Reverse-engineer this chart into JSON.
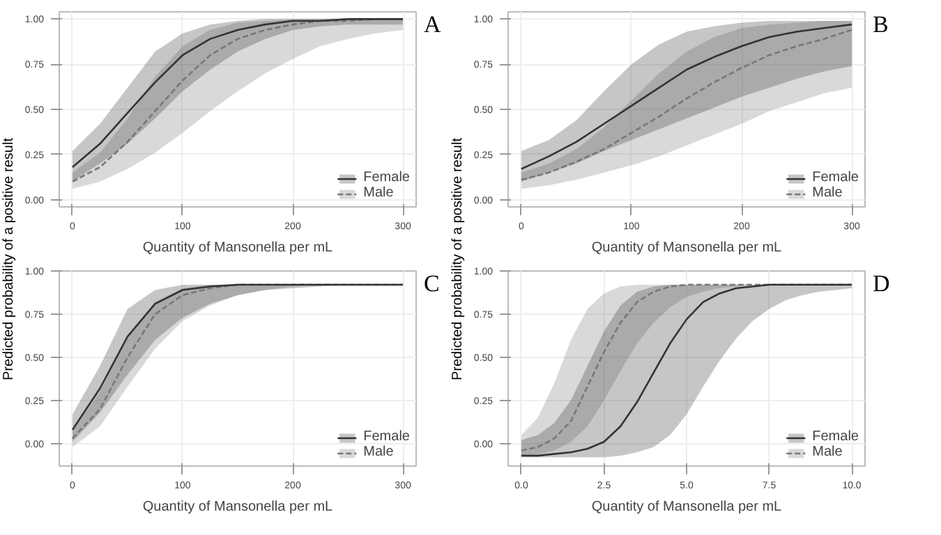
{
  "chart_data": [
    {
      "type": "line",
      "xlabel": "Quantity of Mansonella per mL",
      "ylabel": "Predicted probability of a positive result",
      "annotations": [
        "A"
      ],
      "x": [
        0,
        25,
        50,
        75,
        100,
        125,
        150,
        175,
        200,
        225,
        250,
        275,
        300
      ],
      "xlim": [
        -12,
        312
      ],
      "ylim": [
        -0.04,
        1.04
      ],
      "xticks": [
        0,
        100,
        200,
        300
      ],
      "yticks": [
        {
          "value": 0,
          "label": "0.00"
        },
        {
          "value": 0.25,
          "label": "0.25"
        },
        {
          "value": 0.5,
          "label": "0.50"
        },
        {
          "value": 0.75,
          "label": "0.75"
        },
        {
          "value": 1,
          "label": "1.00"
        }
      ],
      "grid": true,
      "legend": "bottom right",
      "series": [
        {
          "name": "Female",
          "color": "#333333",
          "line_style": "solid",
          "values": [
            0.18,
            0.31,
            0.48,
            0.65,
            0.8,
            0.89,
            0.94,
            0.97,
            0.99,
            0.99,
            1.0,
            1.0,
            1.0
          ],
          "lower": [
            0.1,
            0.2,
            0.31,
            0.45,
            0.6,
            0.72,
            0.82,
            0.89,
            0.94,
            0.96,
            0.97,
            0.97,
            0.97
          ],
          "upper": [
            0.27,
            0.42,
            0.62,
            0.82,
            0.92,
            0.97,
            0.99,
            1.0,
            1.0,
            1.0,
            1.0,
            1.0,
            1.0
          ]
        },
        {
          "name": "Male",
          "color": "#777777",
          "line_style": "dashed",
          "values": [
            0.1,
            0.18,
            0.32,
            0.49,
            0.66,
            0.8,
            0.89,
            0.94,
            0.97,
            0.99,
            0.99,
            1.0,
            1.0
          ],
          "lower": [
            0.06,
            0.1,
            0.17,
            0.26,
            0.37,
            0.49,
            0.6,
            0.7,
            0.78,
            0.85,
            0.89,
            0.92,
            0.94
          ],
          "upper": [
            0.15,
            0.26,
            0.45,
            0.68,
            0.85,
            0.94,
            0.98,
            0.99,
            1.0,
            1.0,
            1.0,
            1.0,
            1.0
          ]
        }
      ]
    },
    {
      "type": "line",
      "xlabel": "Quantity of Mansonella per mL",
      "ylabel": "Predicted probability of a positive result",
      "annotations": [
        "B"
      ],
      "x": [
        0,
        25,
        50,
        75,
        100,
        125,
        150,
        175,
        200,
        225,
        250,
        275,
        300
      ],
      "xlim": [
        -12,
        312
      ],
      "ylim": [
        -0.04,
        1.04
      ],
      "xticks": [
        0,
        100,
        200,
        300
      ],
      "yticks": [
        {
          "value": 0,
          "label": "0.00"
        },
        {
          "value": 0.25,
          "label": "0.25"
        },
        {
          "value": 0.5,
          "label": "0.50"
        },
        {
          "value": 0.75,
          "label": "0.75"
        },
        {
          "value": 1,
          "label": "1.00"
        }
      ],
      "grid": true,
      "legend": "bottom right",
      "series": [
        {
          "name": "Female",
          "color": "#333333",
          "line_style": "solid",
          "values": [
            0.17,
            0.24,
            0.32,
            0.42,
            0.52,
            0.62,
            0.72,
            0.79,
            0.85,
            0.9,
            0.93,
            0.95,
            0.97
          ],
          "lower": [
            0.1,
            0.15,
            0.2,
            0.27,
            0.33,
            0.39,
            0.45,
            0.51,
            0.57,
            0.62,
            0.67,
            0.71,
            0.74
          ],
          "upper": [
            0.27,
            0.33,
            0.44,
            0.6,
            0.75,
            0.86,
            0.93,
            0.96,
            0.98,
            0.99,
            0.99,
            0.99,
            0.99
          ]
        },
        {
          "name": "Male",
          "color": "#777777",
          "line_style": "dashed",
          "values": [
            0.11,
            0.15,
            0.21,
            0.28,
            0.37,
            0.46,
            0.56,
            0.65,
            0.73,
            0.8,
            0.85,
            0.89,
            0.94
          ],
          "lower": [
            0.06,
            0.08,
            0.11,
            0.15,
            0.19,
            0.24,
            0.3,
            0.36,
            0.42,
            0.49,
            0.54,
            0.59,
            0.62
          ],
          "upper": [
            0.15,
            0.2,
            0.28,
            0.4,
            0.55,
            0.7,
            0.82,
            0.9,
            0.95,
            0.97,
            0.98,
            0.99,
            0.99
          ]
        }
      ]
    },
    {
      "type": "line",
      "xlabel": "Quantity of Mansonella per mL",
      "annotations": [
        "C"
      ],
      "x": [
        0,
        25,
        50,
        75,
        100,
        125,
        150,
        175,
        200,
        225,
        250,
        275,
        300
      ],
      "xlim": [
        -12,
        312
      ],
      "ylim": [
        -0.13,
        1.0
      ],
      "xticks": [
        0,
        100,
        200,
        300
      ],
      "yticks": [
        {
          "value": 0,
          "label": "0.00"
        },
        {
          "value": 0.25,
          "label": "0.25"
        },
        {
          "value": 0.5,
          "label": "0.50"
        },
        {
          "value": 0.75,
          "label": "0.75"
        },
        {
          "value": 1,
          "label": "1.00"
        }
      ],
      "grid": true,
      "legend": "bottom right",
      "series": [
        {
          "name": "Female",
          "color": "#333333",
          "line_style": "solid",
          "values": [
            0.08,
            0.32,
            0.62,
            0.81,
            0.89,
            0.91,
            0.92,
            0.92,
            0.92,
            0.92,
            0.92,
            0.92,
            0.92
          ],
          "lower": [
            0.01,
            0.18,
            0.4,
            0.6,
            0.73,
            0.81,
            0.86,
            0.89,
            0.9,
            0.91,
            0.92,
            0.92,
            0.92
          ],
          "upper": [
            0.17,
            0.45,
            0.78,
            0.89,
            0.92,
            0.92,
            0.92,
            0.92,
            0.92,
            0.92,
            0.92,
            0.92,
            0.92
          ]
        },
        {
          "name": "Male",
          "color": "#777777",
          "line_style": "dashed",
          "values": [
            0.03,
            0.2,
            0.5,
            0.75,
            0.86,
            0.9,
            0.92,
            0.92,
            0.92,
            0.92,
            0.92,
            0.92,
            0.92
          ],
          "lower": [
            -0.02,
            0.1,
            0.33,
            0.55,
            0.71,
            0.8,
            0.86,
            0.89,
            0.91,
            0.92,
            0.92,
            0.92,
            0.92
          ],
          "upper": [
            0.07,
            0.3,
            0.62,
            0.82,
            0.9,
            0.92,
            0.92,
            0.92,
            0.92,
            0.92,
            0.92,
            0.92,
            0.92
          ]
        }
      ]
    },
    {
      "type": "line",
      "xlabel": "Quantity of Mansonella per mL",
      "annotations": [
        "D"
      ],
      "x": [
        0,
        0.5,
        1,
        1.5,
        2,
        2.5,
        3,
        3.5,
        4,
        4.5,
        5,
        5.5,
        6,
        6.5,
        7,
        7.5,
        8,
        8.5,
        9,
        9.5,
        10
      ],
      "xlim": [
        -0.4,
        10.4
      ],
      "ylim": [
        -0.13,
        1.0
      ],
      "xticks": [
        {
          "value": 0,
          "label": "0.0"
        },
        {
          "value": 2.5,
          "label": "2.5"
        },
        {
          "value": 5,
          "label": "5.0"
        },
        {
          "value": 7.5,
          "label": "7.5"
        },
        {
          "value": 10,
          "label": "10.0"
        }
      ],
      "yticks": [
        {
          "value": 0,
          "label": "0.00"
        },
        {
          "value": 0.25,
          "label": "0.25"
        },
        {
          "value": 0.5,
          "label": "0.50"
        },
        {
          "value": 0.75,
          "label": "0.75"
        },
        {
          "value": 1,
          "label": "1.00"
        }
      ],
      "grid": true,
      "legend": "bottom right",
      "series": [
        {
          "name": "Female",
          "color": "#333333",
          "line_style": "solid",
          "values": [
            -0.07,
            -0.07,
            -0.06,
            -0.05,
            -0.03,
            0.01,
            0.1,
            0.24,
            0.41,
            0.58,
            0.72,
            0.82,
            0.87,
            0.9,
            0.91,
            0.92,
            0.92,
            0.92,
            0.92,
            0.92,
            0.92
          ],
          "lower": [
            -0.08,
            -0.08,
            -0.08,
            -0.08,
            -0.08,
            -0.08,
            -0.07,
            -0.05,
            -0.02,
            0.05,
            0.17,
            0.33,
            0.48,
            0.61,
            0.71,
            0.78,
            0.83,
            0.86,
            0.88,
            0.89,
            0.9
          ],
          "upper": [
            0.02,
            0.05,
            0.12,
            0.25,
            0.45,
            0.65,
            0.8,
            0.88,
            0.91,
            0.92,
            0.92,
            0.92,
            0.92,
            0.92,
            0.92,
            0.92,
            0.92,
            0.92,
            0.92,
            0.92,
            0.92
          ]
        },
        {
          "name": "Male",
          "color": "#777777",
          "line_style": "dashed",
          "values": [
            -0.04,
            -0.02,
            0.03,
            0.13,
            0.33,
            0.53,
            0.7,
            0.82,
            0.88,
            0.91,
            0.92,
            0.92,
            0.92,
            0.92,
            0.92,
            0.92,
            0.92,
            0.92,
            0.92,
            0.92,
            0.92
          ],
          "lower": [
            -0.07,
            -0.06,
            -0.04,
            0.01,
            0.1,
            0.25,
            0.42,
            0.58,
            0.7,
            0.79,
            0.85,
            0.88,
            0.9,
            0.91,
            0.92,
            0.92,
            0.92,
            0.92,
            0.92,
            0.92,
            0.92
          ],
          "upper": [
            0.05,
            0.15,
            0.35,
            0.6,
            0.78,
            0.87,
            0.91,
            0.92,
            0.92,
            0.92,
            0.92,
            0.92,
            0.92,
            0.92,
            0.92,
            0.92,
            0.92,
            0.92,
            0.92,
            0.92,
            0.92
          ]
        }
      ]
    }
  ]
}
